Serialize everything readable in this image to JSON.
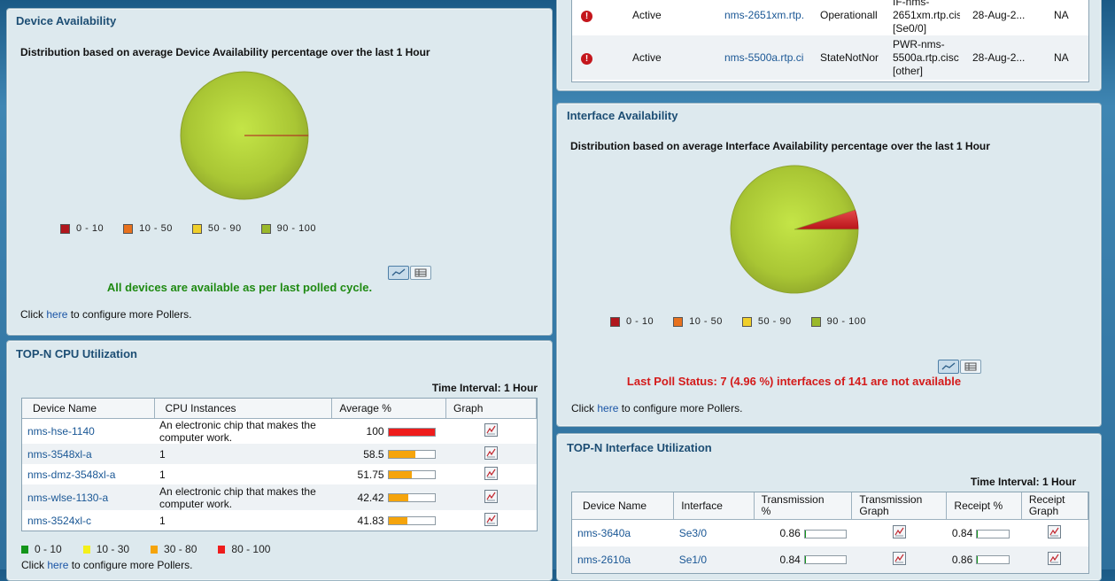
{
  "alarms": {
    "rows": [
      {
        "severity_icon": "alert-icon",
        "status": "Active",
        "device": "nms-2651xm.rtp.",
        "alarm": "Operationall",
        "component": [
          "IF-nms-",
          "2651xm.rtp.cis",
          "[Se0/0]"
        ],
        "time": "28-Aug-2...",
        "ack": "NA"
      },
      {
        "severity_icon": "alert-icon",
        "status": "Active",
        "device": "nms-5500a.rtp.ci",
        "alarm": "StateNotNor",
        "component": [
          "PWR-nms-",
          "5500a.rtp.cisc",
          "[other]"
        ],
        "time": "28-Aug-2...",
        "ack": "NA"
      }
    ]
  },
  "device_availability": {
    "title": "Device Availability",
    "subtitle": "Distribution based on average Device Availability percentage over the last 1 Hour",
    "legend": [
      {
        "label": "0 - 10",
        "color": "#b0161c"
      },
      {
        "label": "10 - 50",
        "color": "#e8711d"
      },
      {
        "label": "50 - 90",
        "color": "#f0cf2a"
      },
      {
        "label": "90 - 100",
        "color": "#9ab82a"
      }
    ],
    "status": "All devices are available as per last polled cycle.",
    "status_color": "#1f8a12",
    "footer_prefix": "Click ",
    "footer_link": "here",
    "footer_suffix": " to configure more Pollers.",
    "chart_data": {
      "type": "pie",
      "categories": [
        "0 - 10",
        "10 - 50",
        "50 - 90",
        "90 - 100"
      ],
      "values": [
        0,
        0,
        0,
        100
      ]
    }
  },
  "interface_availability": {
    "title": "Interface Availability",
    "subtitle": "Distribution based on average Interface Availability percentage over the last 1 Hour",
    "legend": [
      {
        "label": "0 - 10",
        "color": "#b0161c"
      },
      {
        "label": "10 - 50",
        "color": "#e8711d"
      },
      {
        "label": "50 - 90",
        "color": "#f0cf2a"
      },
      {
        "label": "90 - 100",
        "color": "#9ab82a"
      }
    ],
    "status": "Last Poll Status: 7 (4.96 %) interfaces of 141 are not available",
    "status_color": "#d41a1a",
    "footer_prefix": "Click ",
    "footer_link": "here",
    "footer_suffix": " to configure more Pollers.",
    "chart_data": {
      "type": "pie",
      "categories": [
        "0 - 10",
        "10 - 50",
        "50 - 90",
        "90 - 100"
      ],
      "values": [
        4.96,
        0,
        0,
        95.04
      ]
    }
  },
  "cpu": {
    "title": "TOP-N CPU Utilization",
    "interval": "Time Interval: 1 Hour",
    "columns": [
      "Device Name",
      "CPU Instances",
      "Average %",
      "Graph"
    ],
    "rows": [
      {
        "device": "nms-hse-1140",
        "instance": [
          "An electronic chip that makes the",
          "computer work."
        ],
        "avg": "100",
        "fill": 1.0,
        "color": "#ee1c1c"
      },
      {
        "device": "nms-3548xl-a",
        "instance": [
          "1"
        ],
        "avg": "58.5",
        "fill": 0.585,
        "color": "#f5a40c"
      },
      {
        "device": "nms-dmz-3548xl-a",
        "instance": [
          "1"
        ],
        "avg": "51.75",
        "fill": 0.5175,
        "color": "#f5a40c"
      },
      {
        "device": "nms-wlse-1130-a",
        "instance": [
          "An electronic chip that makes the",
          "computer work."
        ],
        "avg": "42.42",
        "fill": 0.4242,
        "color": "#f5a40c"
      },
      {
        "device": "nms-3524xl-c",
        "instance": [
          "1"
        ],
        "avg": "41.83",
        "fill": 0.4183,
        "color": "#f5a40c"
      }
    ],
    "legend": [
      {
        "label": "0 - 10",
        "color": "#13951a"
      },
      {
        "label": "10 - 30",
        "color": "#f4f01a"
      },
      {
        "label": "30 - 80",
        "color": "#f5a40c"
      },
      {
        "label": "80 - 100",
        "color": "#ee1c1c"
      }
    ],
    "footer_prefix": "Click ",
    "footer_link": "here",
    "footer_suffix": " to configure more Pollers."
  },
  "iface": {
    "title": "TOP-N Interface Utilization",
    "interval": "Time Interval: 1 Hour",
    "columns": [
      "Device Name",
      "Interface",
      [
        "Transmission",
        "%"
      ],
      [
        "Transmission",
        "Graph"
      ],
      "Receipt %",
      [
        "Receipt",
        "Graph"
      ]
    ],
    "rows": [
      {
        "device": "nms-3640a",
        "iface": "Se3/0",
        "tx": "0.86",
        "tx_fill": 0.0086,
        "rx": "0.84",
        "rx_fill": 0.0084
      },
      {
        "device": "nms-2610a",
        "iface": "Se1/0",
        "tx": "0.84",
        "tx_fill": 0.0084,
        "rx": "0.86",
        "rx_fill": 0.0086
      }
    ]
  }
}
